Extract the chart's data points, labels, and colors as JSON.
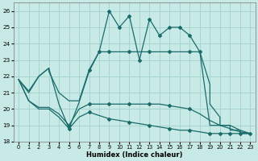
{
  "xlabel": "Humidex (Indice chaleur)",
  "xlim": [
    -0.5,
    23.5
  ],
  "ylim": [
    18,
    26.5
  ],
  "yticks": [
    18,
    19,
    20,
    21,
    22,
    23,
    24,
    25,
    26
  ],
  "xticks": [
    0,
    1,
    2,
    3,
    4,
    5,
    6,
    7,
    8,
    9,
    10,
    11,
    12,
    13,
    14,
    15,
    16,
    17,
    18,
    19,
    20,
    21,
    22,
    23
  ],
  "bg_color": "#c8eae6",
  "grid_color": "#a8d4d0",
  "line_color": "#1a6b6b",
  "line1_x": [
    0,
    1,
    2,
    3,
    4,
    5,
    6,
    7,
    8,
    9,
    10,
    11,
    12,
    13,
    14,
    15,
    16,
    17,
    18,
    19,
    19,
    20,
    20,
    21,
    21,
    22,
    22,
    23
  ],
  "line1_y": [
    21.8,
    21.1,
    22.0,
    22.5,
    20.3,
    18.8,
    20.4,
    22.3,
    23.5,
    26.0,
    25.0,
    25.7,
    23.0,
    25.5,
    24.5,
    25.0,
    25.0,
    24.5,
    23.5,
    21.5,
    20.3,
    19.5,
    19.0,
    19.0,
    18.7,
    18.7,
    18.5,
    18.5
  ],
  "line2_x": [
    0,
    1,
    2,
    3,
    3,
    4,
    5,
    6,
    7,
    8,
    9,
    10,
    11,
    12,
    13,
    14,
    15,
    16,
    17,
    18,
    19,
    20,
    21,
    22,
    23
  ],
  "line2_y": [
    21.8,
    21.0,
    22.0,
    22.5,
    22.3,
    21.0,
    20.5,
    20.5,
    22.4,
    23.5,
    23.5,
    23.5,
    23.5,
    23.5,
    23.5,
    23.5,
    23.5,
    23.5,
    23.5,
    23.5,
    19.0,
    19.0,
    19.0,
    18.7,
    18.5
  ],
  "line3_x": [
    0,
    1,
    2,
    3,
    4,
    5,
    6,
    7,
    8,
    9,
    10,
    11,
    12,
    13,
    14,
    15,
    16,
    17,
    18,
    19,
    20,
    21,
    22,
    23
  ],
  "line3_y": [
    21.8,
    20.5,
    20.1,
    20.1,
    19.7,
    19.0,
    20.0,
    20.3,
    20.3,
    20.3,
    20.3,
    20.3,
    20.3,
    20.3,
    20.3,
    20.2,
    20.1,
    20.0,
    19.7,
    19.3,
    19.0,
    18.8,
    18.6,
    18.5
  ],
  "line4_x": [
    0,
    1,
    2,
    3,
    4,
    5,
    6,
    7,
    8,
    9,
    10,
    11,
    12,
    13,
    14,
    15,
    16,
    17,
    18,
    19,
    20,
    21,
    22,
    23
  ],
  "line4_y": [
    21.8,
    20.5,
    20.0,
    20.0,
    19.5,
    18.8,
    19.5,
    19.8,
    19.6,
    19.4,
    19.3,
    19.2,
    19.1,
    19.0,
    18.9,
    18.8,
    18.7,
    18.7,
    18.6,
    18.5,
    18.5,
    18.5,
    18.5,
    18.5
  ],
  "markers_line1": {
    "x": [
      9,
      10,
      11,
      12,
      13,
      14,
      15,
      16,
      17,
      18
    ],
    "y": [
      26.0,
      25.0,
      25.7,
      23.0,
      25.5,
      24.5,
      25.0,
      25.0,
      24.5,
      23.5
    ]
  },
  "markers_line2": {
    "x": [
      7,
      8,
      9,
      11,
      13,
      15,
      17
    ],
    "y": [
      22.4,
      23.5,
      23.5,
      23.5,
      23.5,
      23.5,
      23.5
    ]
  },
  "markers_line3": {
    "x": [
      5,
      7,
      9,
      11,
      13,
      15,
      17
    ],
    "y": [
      19.0,
      20.3,
      20.3,
      20.3,
      20.3,
      20.2,
      20.0
    ]
  },
  "markers_line4": {
    "x": [
      5,
      7,
      9,
      11,
      13,
      15,
      17,
      19,
      20,
      21,
      22,
      23
    ],
    "y": [
      18.8,
      19.8,
      19.4,
      19.2,
      19.0,
      18.8,
      18.7,
      18.5,
      18.5,
      18.5,
      18.5,
      18.5
    ]
  }
}
